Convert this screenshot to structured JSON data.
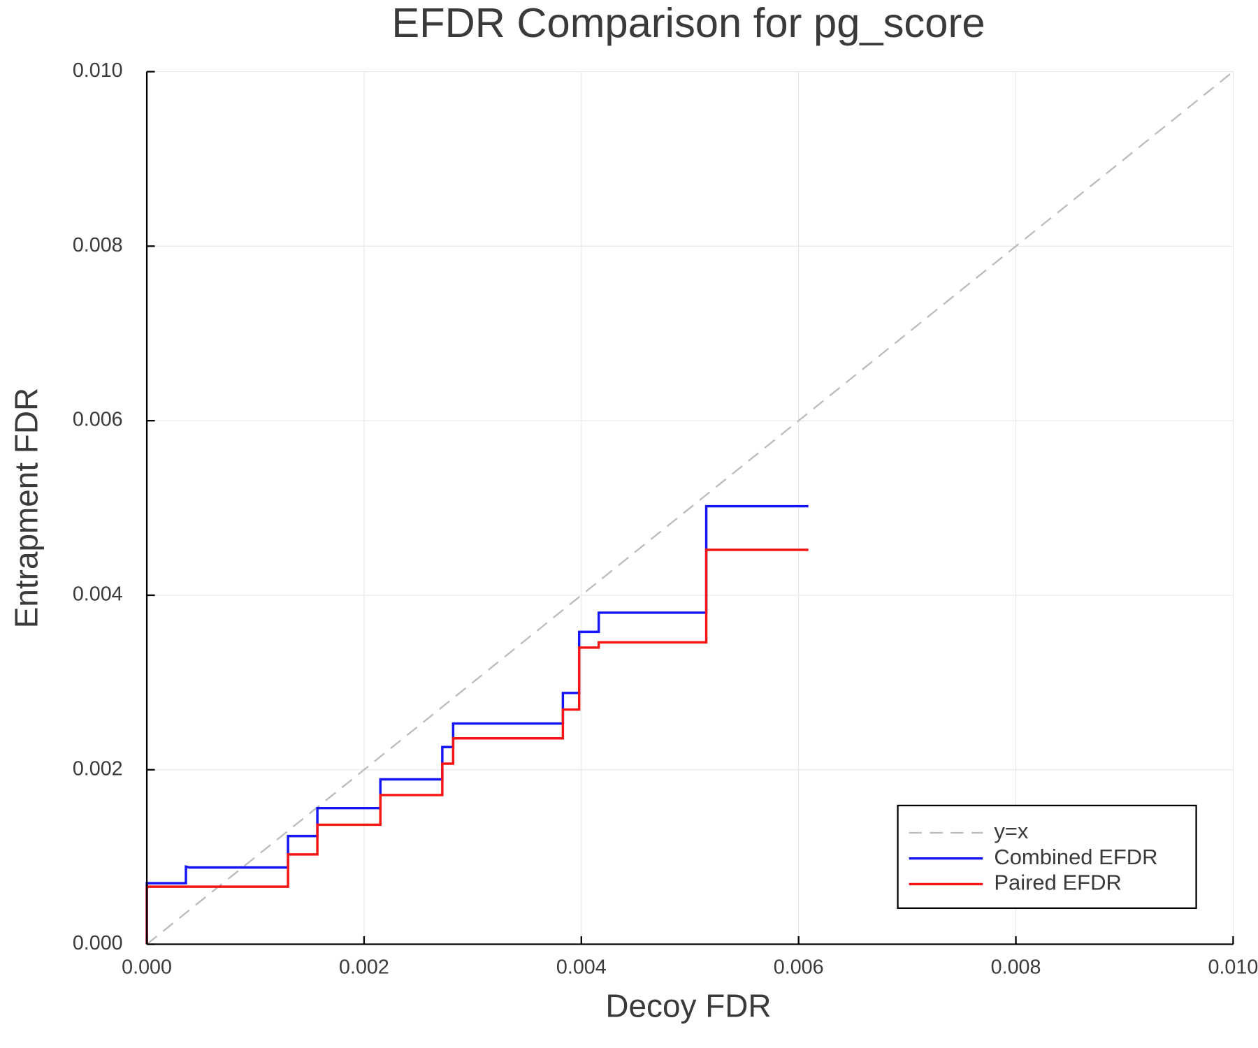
{
  "chart_data": {
    "type": "line",
    "title": "EFDR Comparison for pg_score",
    "x_label": "Decoy FDR",
    "y_label": "Entrapment FDR",
    "xlim": [
      0,
      0.01
    ],
    "ylim": [
      0,
      0.01
    ],
    "xticks": [
      {
        "value": 0,
        "label": "0.000"
      },
      {
        "value": 0.002,
        "label": "0.002"
      },
      {
        "value": 0.004,
        "label": "0.004"
      },
      {
        "value": 0.006,
        "label": "0.006"
      },
      {
        "value": 0.008,
        "label": "0.008"
      },
      {
        "value": 0.01,
        "label": "0.010"
      }
    ],
    "yticks": [
      {
        "value": 0,
        "label": "0.000"
      },
      {
        "value": 0.002,
        "label": "0.002"
      },
      {
        "value": 0.004,
        "label": "0.004"
      },
      {
        "value": 0.006,
        "label": "0.006"
      },
      {
        "value": 0.008,
        "label": "0.008"
      },
      {
        "value": 0.01,
        "label": "0.010"
      }
    ],
    "grid": true,
    "legend": "bottom right",
    "series": [
      {
        "name": "y=x",
        "color": "#bbbbbb",
        "dashed": true,
        "x": [
          0,
          0.01
        ],
        "values": [
          0,
          0.01
        ]
      },
      {
        "name": "Combined EFDR",
        "color": "#1515f5",
        "dashed": false,
        "x": [
          0,
          0,
          0.00036,
          0.00036,
          0.00039,
          0.0013,
          0.0013,
          0.00157,
          0.00157,
          0.00215,
          0.00215,
          0.00272,
          0.00272,
          0.00282,
          0.00282,
          0.00383,
          0.00383,
          0.00398,
          0.00398,
          0.00416,
          0.00416,
          0.00515,
          0.00515,
          0.00609
        ],
        "values": [
          0,
          0.0007,
          0.0007,
          0.00089,
          0.00088,
          0.00088,
          0.00124,
          0.00124,
          0.00156,
          0.00156,
          0.00189,
          0.00189,
          0.00226,
          0.00226,
          0.00253,
          0.00253,
          0.00288,
          0.00288,
          0.00358,
          0.00358,
          0.0038,
          0.0038,
          0.00502,
          0.00502
        ]
      },
      {
        "name": "Paired EFDR",
        "color": "#f51515",
        "dashed": false,
        "x": [
          0,
          0,
          0.0013,
          0.0013,
          0.00157,
          0.00157,
          0.00215,
          0.00215,
          0.00272,
          0.00272,
          0.00282,
          0.00282,
          0.00383,
          0.00383,
          0.00398,
          0.00398,
          0.00416,
          0.00416,
          0.00515,
          0.00515,
          0.00609
        ],
        "values": [
          0,
          0.00066,
          0.00066,
          0.00103,
          0.00103,
          0.00137,
          0.00137,
          0.00171,
          0.00171,
          0.00207,
          0.00207,
          0.00236,
          0.00236,
          0.00269,
          0.00269,
          0.0034,
          0.0034,
          0.00346,
          0.00346,
          0.00452,
          0.00452
        ]
      }
    ]
  }
}
